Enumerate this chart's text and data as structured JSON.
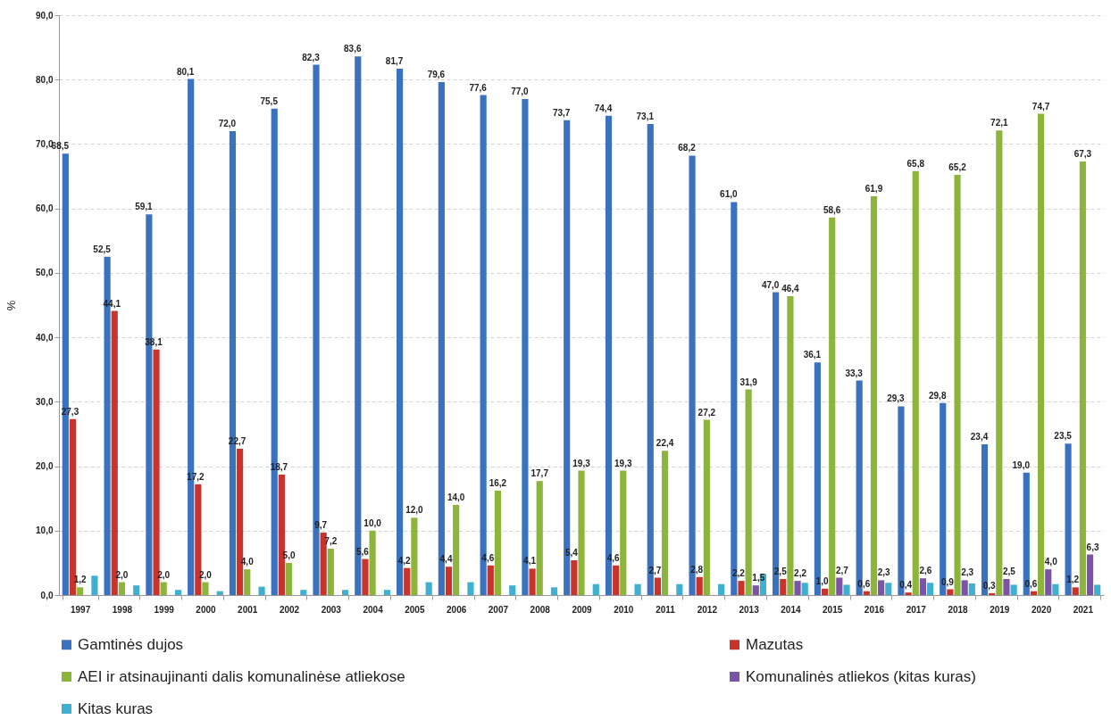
{
  "chart_data": {
    "type": "bar",
    "ylabel": "%",
    "categories": [
      "1997",
      "1998",
      "1999",
      "2000",
      "2001",
      "2002",
      "2003",
      "2004",
      "2005",
      "2006",
      "2007",
      "2008",
      "2009",
      "2010",
      "2011",
      "2012",
      "2013",
      "2014",
      "2015",
      "2016",
      "2017",
      "2018",
      "2019",
      "2020",
      "2021"
    ],
    "ylim": [
      0,
      90
    ],
    "yticks": [
      {
        "value": 0,
        "label": "0,0"
      },
      {
        "value": 10,
        "label": "10,0"
      },
      {
        "value": 20,
        "label": "20,0"
      },
      {
        "value": 30,
        "label": "30,0"
      },
      {
        "value": 40,
        "label": "40,0"
      },
      {
        "value": 50,
        "label": "50,0"
      },
      {
        "value": 60,
        "label": "60,0"
      },
      {
        "value": 70,
        "label": "70,0"
      },
      {
        "value": 80,
        "label": "80,0"
      },
      {
        "value": 90,
        "label": "90,0"
      }
    ],
    "grid": "y",
    "legend": "bottom",
    "series": [
      {
        "name": "Gamtinės dujos",
        "color": "#3a72c0",
        "values": [
          68.5,
          52.5,
          59.1,
          80.1,
          72.0,
          75.5,
          82.3,
          83.6,
          81.7,
          79.6,
          77.6,
          77.0,
          73.7,
          74.4,
          73.1,
          68.2,
          61.0,
          47.0,
          36.1,
          33.3,
          29.3,
          29.8,
          23.4,
          19.0,
          23.5
        ],
        "value_labels": [
          "68,5",
          "52,5",
          "59,1",
          "80,1",
          "72,0",
          "75,5",
          "82,3",
          "83,6",
          "81,7",
          "79,6",
          "77,6",
          "77,0",
          "73,7",
          "74,4",
          "73,1",
          "68,2",
          "61,0",
          "47,0",
          "36,1",
          "33,3",
          "29,3",
          "29,8",
          "23,4",
          "19,0",
          "23,5"
        ]
      },
      {
        "name": "Mazutas",
        "color": "#c9332c",
        "values": [
          27.3,
          44.1,
          38.1,
          17.2,
          22.7,
          18.7,
          9.7,
          5.6,
          4.2,
          4.4,
          4.6,
          4.1,
          5.4,
          4.6,
          2.7,
          2.8,
          2.2,
          2.5,
          1.0,
          0.6,
          0.4,
          0.9,
          0.3,
          0.6,
          1.2
        ],
        "value_labels": [
          "27,3",
          "44,1",
          "38,1",
          "17,2",
          "22,7",
          "18,7",
          "9,7",
          "5,6",
          "4,2",
          "4,4",
          "4,6",
          "4,1",
          "5,4",
          "4,6",
          "2,7",
          "2,8",
          "2,2",
          "2,5",
          "1,0",
          "0,6",
          "0,4",
          "0,9",
          "0,3",
          "0,6",
          "1,2"
        ]
      },
      {
        "name": "AEI ir atsinaujinanti dalis komunalinėse atliekose",
        "color": "#8db53b",
        "values": [
          1.2,
          2.0,
          2.0,
          2.0,
          4.0,
          5.0,
          7.2,
          10.0,
          12.0,
          14.0,
          16.2,
          17.7,
          19.3,
          19.3,
          22.4,
          27.2,
          31.9,
          46.4,
          58.6,
          61.9,
          65.8,
          65.2,
          72.1,
          74.7,
          67.3
        ],
        "value_labels": [
          "1,2",
          "2,0",
          "2,0",
          "2,0",
          "4,0",
          "5,0",
          "7,2",
          "10,0",
          "12,0",
          "14,0",
          "16,2",
          "17,7",
          "19,3",
          "19,3",
          "22,4",
          "27,2",
          "31,9",
          "46,4",
          "58,6",
          "61,9",
          "65,8",
          "65,2",
          "72,1",
          "74,7",
          "67,3"
        ]
      },
      {
        "name": "Komunalinės atliekos (kitas kuras)",
        "color": "#7b54a6",
        "values": [
          null,
          null,
          null,
          null,
          null,
          null,
          null,
          null,
          null,
          null,
          null,
          null,
          null,
          null,
          null,
          null,
          1.5,
          2.2,
          2.7,
          2.3,
          2.6,
          2.3,
          2.5,
          4.0,
          6.3
        ],
        "value_labels": [
          null,
          null,
          null,
          null,
          null,
          null,
          null,
          null,
          null,
          null,
          null,
          null,
          null,
          null,
          null,
          null,
          "1,5",
          "2,2",
          "2,7",
          "2,3",
          "2,6",
          "2,3",
          "2,5",
          "4,0",
          "6,3"
        ]
      },
      {
        "name": "Kitas kuras",
        "color": "#3fb0cf",
        "values": [
          3.0,
          1.5,
          0.8,
          0.6,
          1.3,
          0.8,
          0.8,
          0.8,
          2.0,
          2.0,
          1.5,
          1.2,
          1.7,
          1.7,
          1.7,
          1.7,
          3.3,
          1.9,
          1.6,
          1.9,
          1.9,
          1.8,
          1.6,
          1.7,
          1.6
        ]
      }
    ]
  }
}
